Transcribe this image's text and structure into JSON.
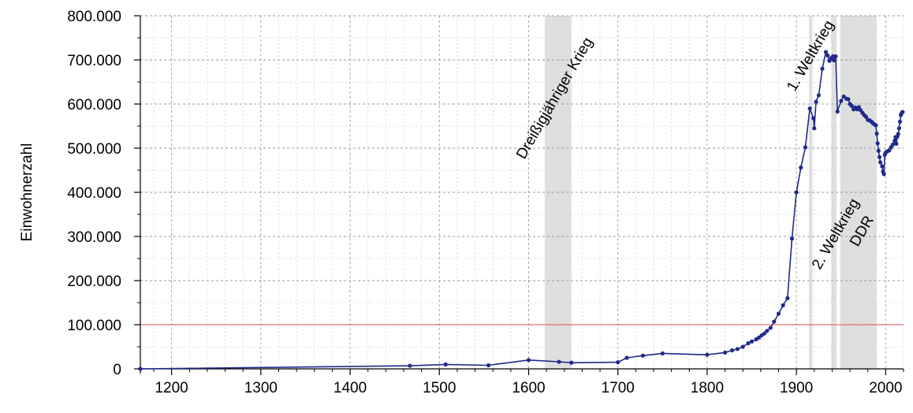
{
  "chart_data": {
    "type": "line",
    "title": "",
    "xlabel": "",
    "ylabel": "Einwohnerzahl",
    "xlim": [
      1165,
      2020
    ],
    "ylim": [
      0,
      800000
    ],
    "grid": true,
    "x_ticks": [
      1200,
      1300,
      1400,
      1500,
      1600,
      1700,
      1800,
      1900,
      2000
    ],
    "x_tick_labels": [
      "1200",
      "1300",
      "1400",
      "1500",
      "1600",
      "1700",
      "1800",
      "1900",
      "2000"
    ],
    "y_ticks": [
      0,
      100000,
      200000,
      300000,
      400000,
      500000,
      600000,
      700000,
      800000
    ],
    "y_tick_labels": [
      "0",
      "100.000",
      "200.000",
      "300.000",
      "400.000",
      "500.000",
      "600.000",
      "700.000",
      "800.000"
    ],
    "reference_line": {
      "y": 100000,
      "color": "#e05050"
    },
    "series_color": "#1f2a8c",
    "shaded_periods": [
      {
        "label": "Dreißigjähriger Krieg",
        "start": 1618,
        "end": 1648
      },
      {
        "label": "1. Weltkrieg",
        "start": 1914,
        "end": 1918
      },
      {
        "label": "2. Weltkrieg",
        "start": 1939,
        "end": 1945
      },
      {
        "label": "DDR",
        "start": 1949,
        "end": 1990
      }
    ],
    "series": [
      {
        "points": [
          [
            1165,
            0
          ],
          [
            1467,
            7000
          ],
          [
            1507,
            10000
          ],
          [
            1555,
            8000
          ],
          [
            1600,
            20000
          ],
          [
            1634,
            16000
          ],
          [
            1648,
            14000
          ],
          [
            1700,
            15000
          ],
          [
            1710,
            25000
          ],
          [
            1728,
            30000
          ],
          [
            1750,
            35000
          ],
          [
            1800,
            32000
          ],
          [
            1820,
            37000
          ],
          [
            1828,
            42000
          ],
          [
            1834,
            45000
          ],
          [
            1840,
            50000
          ],
          [
            1846,
            58000
          ],
          [
            1850,
            62000
          ],
          [
            1855,
            67000
          ],
          [
            1858,
            71000
          ],
          [
            1861,
            76000
          ],
          [
            1864,
            80000
          ],
          [
            1867,
            86000
          ],
          [
            1871,
            93000
          ],
          [
            1875,
            107000
          ],
          [
            1880,
            125000
          ],
          [
            1885,
            144000
          ],
          [
            1890,
            160000
          ],
          [
            1895,
            295000
          ],
          [
            1900,
            400000
          ],
          [
            1905,
            456000
          ],
          [
            1910,
            502000
          ],
          [
            1915,
            590000
          ],
          [
            1919,
            568000
          ],
          [
            1920,
            545000
          ],
          [
            1922,
            605000
          ],
          [
            1925,
            620000
          ],
          [
            1929,
            680000
          ],
          [
            1933,
            718000
          ],
          [
            1935,
            710000
          ],
          [
            1937,
            698000
          ],
          [
            1939,
            704000
          ],
          [
            1941,
            708000
          ],
          [
            1942,
            699000
          ],
          [
            1944,
            708000
          ],
          [
            1946,
            583000
          ],
          [
            1950,
            607000
          ],
          [
            1953,
            617000
          ],
          [
            1956,
            612000
          ],
          [
            1958,
            611000
          ],
          [
            1960,
            600000
          ],
          [
            1962,
            596000
          ],
          [
            1964,
            588000
          ],
          [
            1966,
            592000
          ],
          [
            1968,
            588000
          ],
          [
            1970,
            593000
          ],
          [
            1972,
            586000
          ],
          [
            1974,
            580000
          ],
          [
            1976,
            575000
          ],
          [
            1978,
            571000
          ],
          [
            1980,
            564000
          ],
          [
            1982,
            563000
          ],
          [
            1984,
            560000
          ],
          [
            1986,
            556000
          ],
          [
            1988,
            553000
          ],
          [
            1989,
            552000
          ],
          [
            1990,
            533000
          ],
          [
            1991,
            511000
          ],
          [
            1992,
            494000
          ],
          [
            1993,
            480000
          ],
          [
            1994,
            468000
          ],
          [
            1996,
            459000
          ],
          [
            1997,
            447000
          ],
          [
            1998,
            441000
          ],
          [
            1999,
            485000
          ],
          [
            2000,
            490000
          ],
          [
            2002,
            493000
          ],
          [
            2004,
            495000
          ],
          [
            2006,
            502000
          ],
          [
            2008,
            508000
          ],
          [
            2010,
            517000
          ],
          [
            2011,
            525000
          ],
          [
            2012,
            510000
          ],
          [
            2013,
            526000
          ],
          [
            2014,
            532000
          ],
          [
            2015,
            545000
          ],
          [
            2016,
            560000
          ],
          [
            2017,
            575000
          ],
          [
            2018,
            580000
          ],
          [
            2019,
            582000
          ]
        ]
      }
    ]
  }
}
